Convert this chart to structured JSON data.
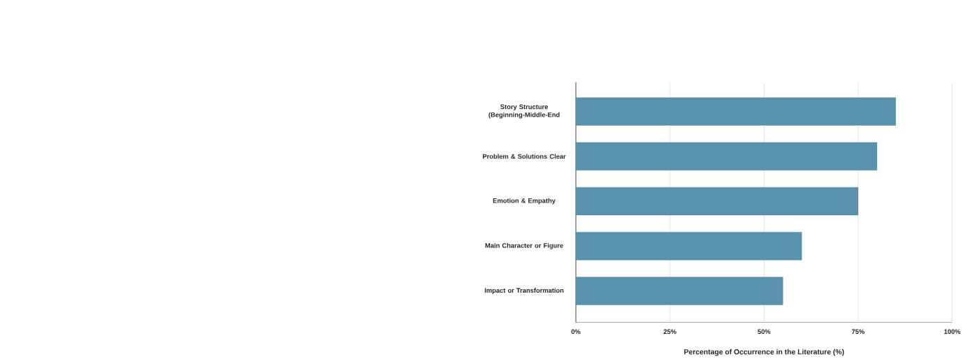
{
  "chart_data": {
    "type": "bar",
    "orientation": "horizontal",
    "xlabel": "Percentage of Occurrence in the Literature (%)",
    "categories": [
      "Story Structure (Beginning-Middle-End",
      "Problem & Solutions Clear",
      "Emotion & Empathy",
      "Main Character or Figure",
      "Impact or Transformation"
    ],
    "values": [
      85,
      80,
      75,
      60,
      55
    ],
    "color": "#5a92ad",
    "xlim": [
      0,
      100
    ],
    "xticks": [
      {
        "value": 0,
        "label": "0%"
      },
      {
        "value": 25,
        "label": "25%"
      },
      {
        "value": 50,
        "label": "50%"
      },
      {
        "value": 75,
        "label": "75%"
      },
      {
        "value": 100,
        "label": "100%"
      }
    ],
    "grid": "x"
  }
}
